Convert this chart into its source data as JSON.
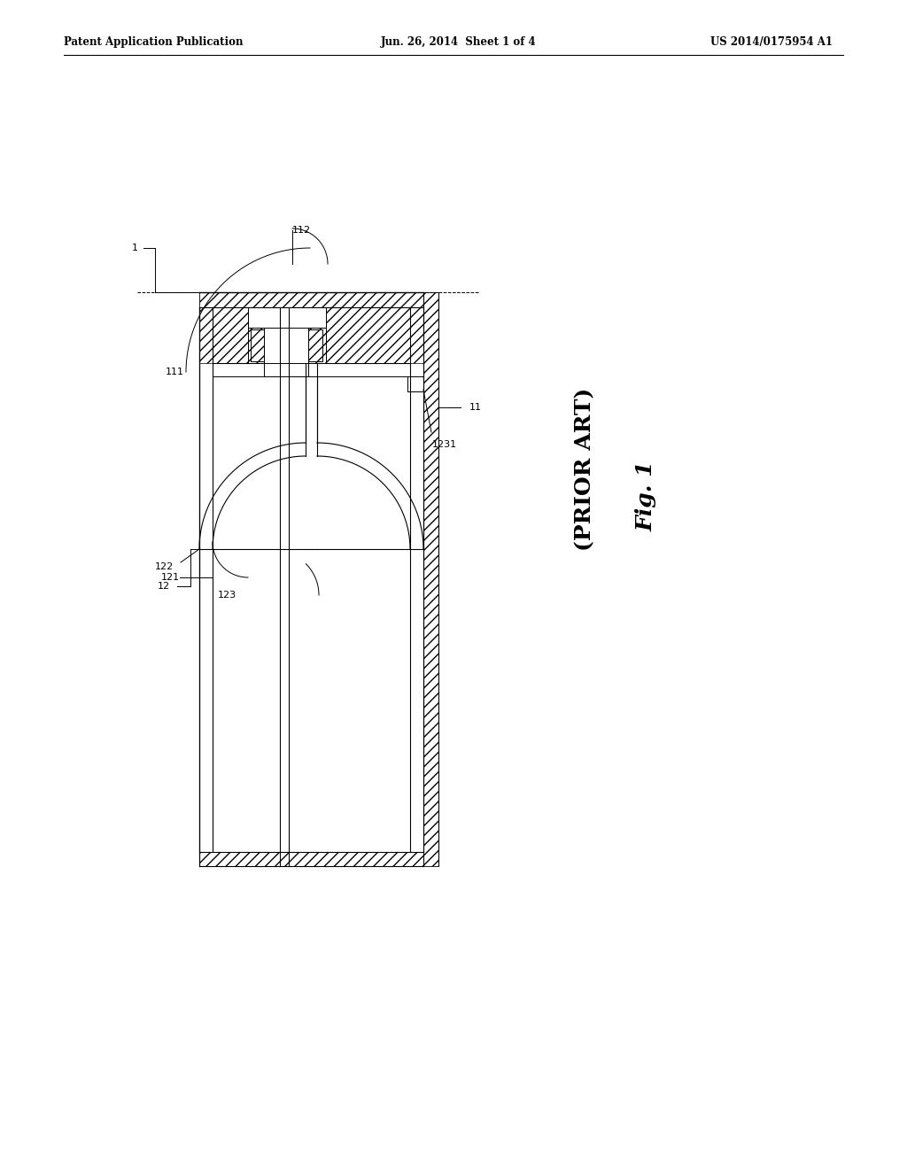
{
  "bg_color": "#ffffff",
  "header_left": "Patent Application Publication",
  "header_mid": "Jun. 26, 2014  Sheet 1 of 4",
  "header_right": "US 2014/0175954 A1",
  "label_1": "1",
  "label_11": "11",
  "label_111": "111",
  "label_112": "112",
  "label_12": "12",
  "label_121": "121",
  "label_122": "122",
  "label_123": "123",
  "label_1231": "1231",
  "fig_label": "Fig. 1",
  "prior_art": "(PRIOR ART)"
}
